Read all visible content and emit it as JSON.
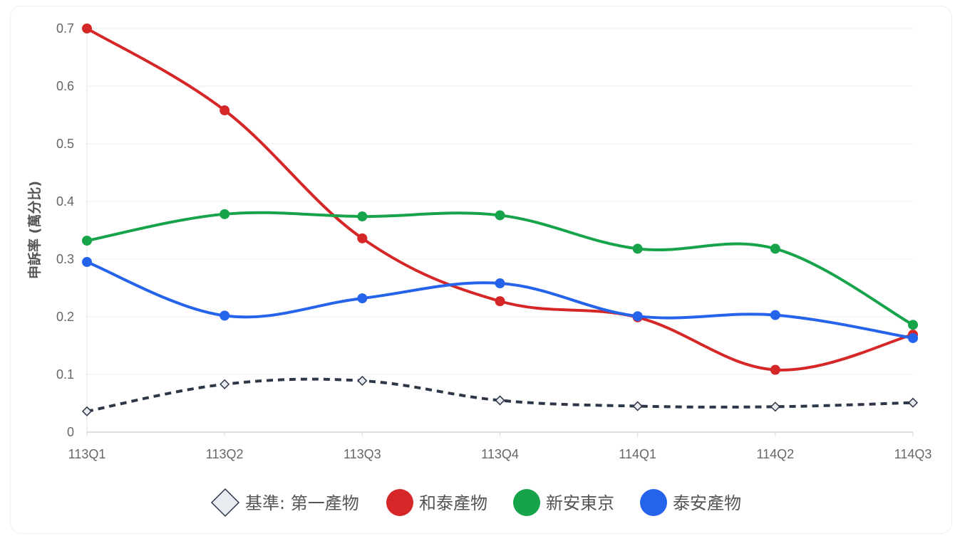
{
  "chart_data": {
    "type": "line",
    "ylabel": "申訴率 (萬分比)",
    "xlabel": "",
    "categories": [
      "113Q1",
      "113Q2",
      "113Q3",
      "113Q4",
      "114Q1",
      "114Q2",
      "114Q3"
    ],
    "ylim": [
      0,
      0.7
    ],
    "yticks": [
      "0",
      "0.1",
      "0.2",
      "0.3",
      "0.4",
      "0.5",
      "0.6",
      "0.7"
    ],
    "grid": true,
    "legend_position": "bottom",
    "series": [
      {
        "name": "基準: 第一產物",
        "color": "#2d3748",
        "style": "dashed",
        "marker": "diamond",
        "values": [
          0.036,
          0.083,
          0.089,
          0.055,
          0.045,
          0.044,
          0.051
        ]
      },
      {
        "name": "和泰產物",
        "color": "#d62728",
        "style": "solid",
        "marker": "circle",
        "values": [
          0.7,
          0.558,
          0.336,
          0.227,
          0.199,
          0.108,
          0.169
        ]
      },
      {
        "name": "新安東京",
        "color": "#16a34a",
        "style": "solid",
        "marker": "circle",
        "values": [
          0.332,
          0.378,
          0.374,
          0.376,
          0.318,
          0.318,
          0.186
        ]
      },
      {
        "name": "泰安產物",
        "color": "#2563eb",
        "style": "solid",
        "marker": "circle",
        "values": [
          0.295,
          0.202,
          0.232,
          0.258,
          0.201,
          0.203,
          0.163
        ]
      }
    ]
  }
}
